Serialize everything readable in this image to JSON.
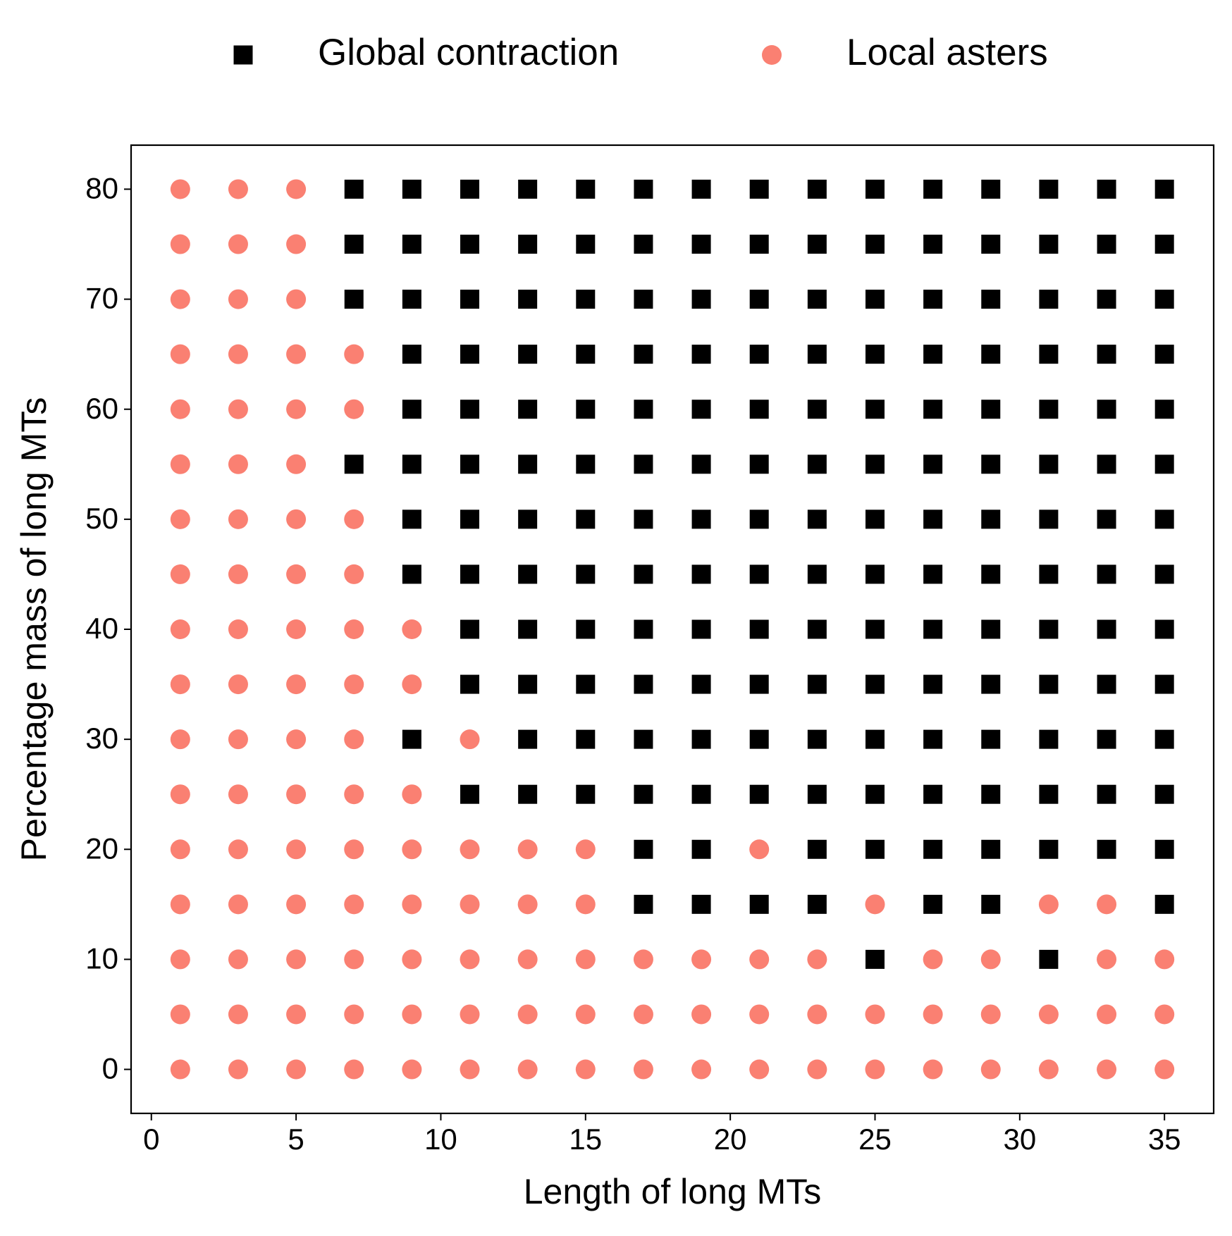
{
  "chart_data": {
    "type": "scatter",
    "x_label": "Length of long MTs",
    "y_label": "Percentage mass of long MTs",
    "xlim": [
      -0.7,
      36.7
    ],
    "ylim": [
      -4,
      84
    ],
    "xticks": [
      0,
      5,
      10,
      15,
      20,
      25,
      30,
      35
    ],
    "yticks": [
      0,
      10,
      20,
      30,
      40,
      50,
      60,
      70,
      80
    ],
    "legend": "top-outside",
    "series": [
      {
        "name": "Global contraction",
        "color": "#000000",
        "marker": "square",
        "x": [
          7,
          9,
          11,
          13,
          15,
          17,
          19,
          21,
          23,
          25,
          27,
          29,
          31,
          33,
          35,
          7,
          9,
          11,
          13,
          15,
          17,
          19,
          21,
          23,
          25,
          27,
          29,
          31,
          33,
          35,
          7,
          9,
          11,
          13,
          15,
          17,
          19,
          21,
          23,
          25,
          27,
          29,
          31,
          33,
          35,
          9,
          11,
          13,
          15,
          17,
          19,
          21,
          23,
          25,
          27,
          29,
          31,
          33,
          35,
          9,
          11,
          13,
          15,
          17,
          19,
          21,
          23,
          25,
          27,
          29,
          31,
          33,
          35,
          7,
          9,
          11,
          13,
          15,
          17,
          19,
          21,
          23,
          25,
          27,
          29,
          31,
          33,
          35,
          9,
          11,
          13,
          15,
          17,
          19,
          21,
          23,
          25,
          27,
          29,
          31,
          33,
          35,
          9,
          11,
          13,
          15,
          17,
          19,
          21,
          23,
          25,
          27,
          29,
          31,
          33,
          35,
          11,
          13,
          15,
          17,
          19,
          21,
          23,
          25,
          27,
          29,
          31,
          33,
          35,
          11,
          13,
          15,
          17,
          19,
          21,
          23,
          25,
          27,
          29,
          31,
          33,
          35,
          9,
          13,
          15,
          17,
          19,
          21,
          23,
          25,
          27,
          29,
          31,
          33,
          35,
          11,
          13,
          15,
          17,
          19,
          21,
          23,
          25,
          27,
          29,
          31,
          33,
          35,
          17,
          19,
          23,
          25,
          27,
          29,
          31,
          33,
          35,
          17,
          19,
          21,
          23,
          27,
          29,
          35,
          25,
          31
        ],
        "values": [
          80,
          80,
          80,
          80,
          80,
          80,
          80,
          80,
          80,
          80,
          80,
          80,
          80,
          80,
          80,
          75,
          75,
          75,
          75,
          75,
          75,
          75,
          75,
          75,
          75,
          75,
          75,
          75,
          75,
          75,
          70,
          70,
          70,
          70,
          70,
          70,
          70,
          70,
          70,
          70,
          70,
          70,
          70,
          70,
          70,
          65,
          65,
          65,
          65,
          65,
          65,
          65,
          65,
          65,
          65,
          65,
          65,
          65,
          65,
          60,
          60,
          60,
          60,
          60,
          60,
          60,
          60,
          60,
          60,
          60,
          60,
          60,
          60,
          55,
          55,
          55,
          55,
          55,
          55,
          55,
          55,
          55,
          55,
          55,
          55,
          55,
          55,
          55,
          50,
          50,
          50,
          50,
          50,
          50,
          50,
          50,
          50,
          50,
          50,
          50,
          50,
          50,
          45,
          45,
          45,
          45,
          45,
          45,
          45,
          45,
          45,
          45,
          45,
          45,
          45,
          45,
          40,
          40,
          40,
          40,
          40,
          40,
          40,
          40,
          40,
          40,
          40,
          40,
          40,
          35,
          35,
          35,
          35,
          35,
          35,
          35,
          35,
          35,
          35,
          35,
          35,
          35,
          30,
          30,
          30,
          30,
          30,
          30,
          30,
          30,
          30,
          30,
          30,
          30,
          30,
          25,
          25,
          25,
          25,
          25,
          25,
          25,
          25,
          25,
          25,
          25,
          25,
          25,
          20,
          20,
          20,
          20,
          20,
          20,
          20,
          20,
          20,
          15,
          15,
          15,
          15,
          15,
          15,
          15,
          10,
          10
        ]
      },
      {
        "name": "Local asters",
        "color": "#fa8072",
        "marker": "circle",
        "x": [
          1,
          3,
          5,
          1,
          3,
          5,
          1,
          3,
          5,
          1,
          3,
          5,
          7,
          1,
          3,
          5,
          7,
          1,
          3,
          5,
          1,
          3,
          5,
          7,
          1,
          3,
          5,
          7,
          1,
          3,
          5,
          7,
          9,
          1,
          3,
          5,
          7,
          9,
          1,
          3,
          5,
          7,
          11,
          1,
          3,
          5,
          7,
          9,
          1,
          3,
          5,
          7,
          9,
          11,
          13,
          15,
          21,
          1,
          3,
          5,
          7,
          9,
          11,
          13,
          15,
          25,
          31,
          33,
          1,
          3,
          5,
          7,
          9,
          11,
          13,
          15,
          17,
          19,
          21,
          23,
          27,
          29,
          33,
          35,
          1,
          3,
          5,
          7,
          9,
          11,
          13,
          15,
          17,
          19,
          21,
          23,
          25,
          27,
          29,
          31,
          33,
          35,
          1,
          3,
          5,
          7,
          9,
          11,
          13,
          15,
          17,
          19,
          21,
          23,
          25,
          27,
          29,
          31,
          33,
          35
        ],
        "values": [
          80,
          80,
          80,
          75,
          75,
          75,
          70,
          70,
          70,
          65,
          65,
          65,
          65,
          60,
          60,
          60,
          60,
          55,
          55,
          55,
          50,
          50,
          50,
          50,
          45,
          45,
          45,
          45,
          40,
          40,
          40,
          40,
          40,
          35,
          35,
          35,
          35,
          35,
          30,
          30,
          30,
          30,
          30,
          25,
          25,
          25,
          25,
          25,
          20,
          20,
          20,
          20,
          20,
          20,
          20,
          20,
          20,
          15,
          15,
          15,
          15,
          15,
          15,
          15,
          15,
          15,
          15,
          15,
          10,
          10,
          10,
          10,
          10,
          10,
          10,
          10,
          10,
          10,
          10,
          10,
          10,
          10,
          10,
          10,
          5,
          5,
          5,
          5,
          5,
          5,
          5,
          5,
          5,
          5,
          5,
          5,
          5,
          5,
          5,
          5,
          5,
          5,
          0,
          0,
          0,
          0,
          0,
          0,
          0,
          0,
          0,
          0,
          0,
          0,
          0,
          0,
          0,
          0,
          0,
          0
        ]
      }
    ]
  }
}
